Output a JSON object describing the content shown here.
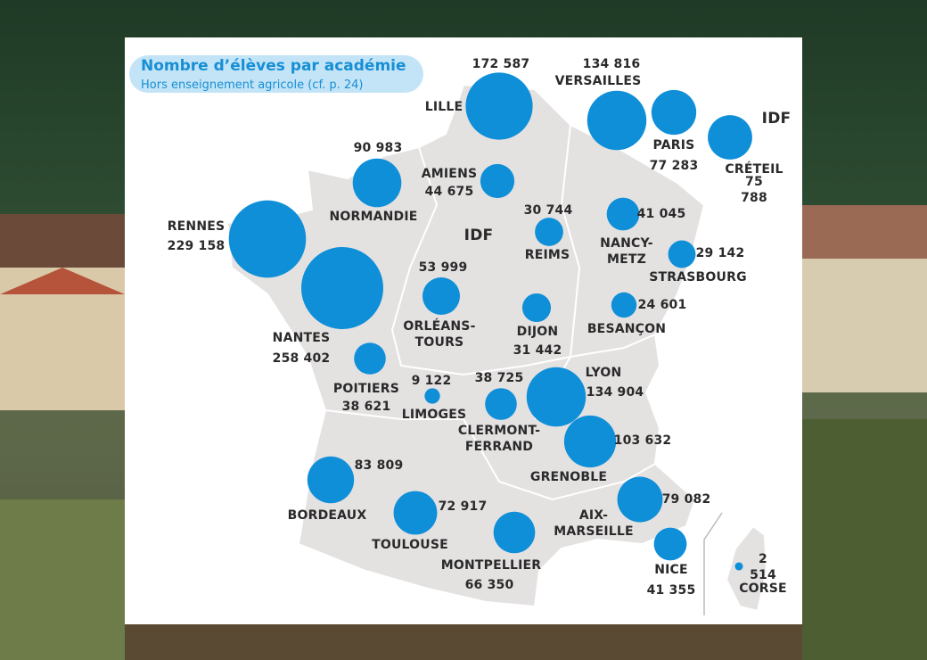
{
  "title": "Nombre d’élèves par académie",
  "subtitle": "Hors enseignement agricole (cf. p. 24)",
  "map_labels": [
    "IDF",
    "IDF"
  ],
  "academies": [
    {
      "name": "LILLE",
      "value": 172587,
      "value_label": "172 587"
    },
    {
      "name": "VERSAILLES",
      "value": 134816,
      "value_label": "134 816"
    },
    {
      "name": "PARIS",
      "value": 77283,
      "value_label": "77 283"
    },
    {
      "name": "CRÉTEIL",
      "value": 75788,
      "value_label": "75 788"
    },
    {
      "name": "AMIENS",
      "value": 44675,
      "value_label": "44 675"
    },
    {
      "name": "NORMANDIE",
      "value": 90983,
      "value_label": "90 983"
    },
    {
      "name": "RENNES",
      "value": 229158,
      "value_label": "229 158"
    },
    {
      "name": "NANTES",
      "value": 258402,
      "value_label": "258 402"
    },
    {
      "name": "REIMS",
      "value": 30744,
      "value_label": "30 744"
    },
    {
      "name": "NANCY-\nMETZ",
      "value": 41045,
      "value_label": "41 045"
    },
    {
      "name": "STRASBOURG",
      "value": 29142,
      "value_label": "29 142"
    },
    {
      "name": "ORLÉANS-\nTOURS",
      "value": 53999,
      "value_label": "53 999"
    },
    {
      "name": "DIJON",
      "value": 31442,
      "value_label": "31 442"
    },
    {
      "name": "BESANÇON",
      "value": 24601,
      "value_label": "24 601"
    },
    {
      "name": "POITIERS",
      "value": 38621,
      "value_label": "38 621"
    },
    {
      "name": "LIMOGES",
      "value": 9122,
      "value_label": "9 122"
    },
    {
      "name": "CLERMONT-\nFERRAND",
      "value": 38725,
      "value_label": "38 725"
    },
    {
      "name": "LYON",
      "value": 134904,
      "value_label": "134 904"
    },
    {
      "name": "GRENOBLE",
      "value": 103632,
      "value_label": "103 632"
    },
    {
      "name": "BORDEAUX",
      "value": 83809,
      "value_label": "83 809"
    },
    {
      "name": "TOULOUSE",
      "value": 72917,
      "value_label": "72 917"
    },
    {
      "name": "MONTPELLIER",
      "value": 66350,
      "value_label": "66 350"
    },
    {
      "name": "AIX-\nMARSEILLE",
      "value": 79082,
      "value_label": "79 082"
    },
    {
      "name": "NICE",
      "value": 41355,
      "value_label": "41 355"
    },
    {
      "name": "CORSE",
      "value": 2514,
      "value_label": "2 514"
    }
  ]
}
